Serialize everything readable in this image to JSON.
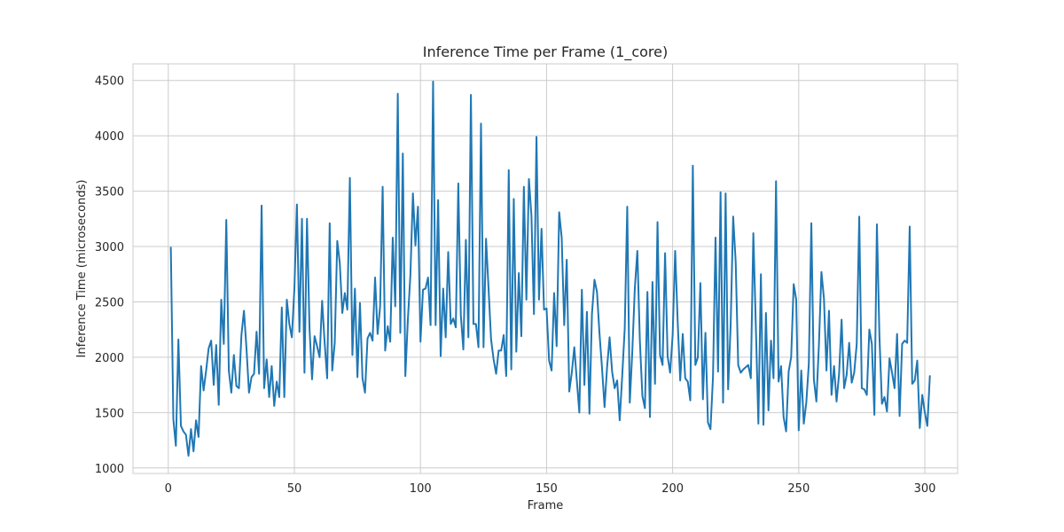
{
  "chart_data": {
    "type": "line",
    "title": "Inference Time per Frame (1_core)",
    "xlabel": "Frame",
    "ylabel": "Inference Time (microseconds)",
    "xlim": [
      -14,
      313
    ],
    "ylim": [
      950,
      4650
    ],
    "xticks": [
      0,
      50,
      100,
      150,
      200,
      250,
      300
    ],
    "yticks": [
      1000,
      1500,
      2000,
      2500,
      3000,
      3500,
      4000,
      4500
    ],
    "grid": true,
    "line_color": "#1f77b4",
    "series": [
      {
        "x_start": 1,
        "values": [
          2990,
          1440,
          1200,
          2160,
          1380,
          1330,
          1300,
          1110,
          1350,
          1150,
          1430,
          1280,
          1920,
          1700,
          1880,
          2080,
          2150,
          1750,
          2110,
          1570,
          2520,
          2120,
          3240,
          1880,
          1680,
          2020,
          1740,
          1720,
          2200,
          2420,
          2080,
          1680,
          1820,
          1850,
          2230,
          1850,
          3370,
          1720,
          1980,
          1640,
          1920,
          1560,
          1780,
          1640,
          2450,
          1640,
          2520,
          2300,
          2180,
          2620,
          3380,
          2230,
          3250,
          1860,
          3250,
          2260,
          1800,
          2190,
          2100,
          2000,
          2510,
          2130,
          1810,
          3210,
          1880,
          2130,
          3050,
          2850,
          2400,
          2580,
          2430,
          3620,
          2020,
          2620,
          1820,
          2490,
          1810,
          1680,
          2170,
          2220,
          2150,
          2720,
          2210,
          2460,
          3540,
          2060,
          2280,
          2140,
          3080,
          2460,
          4380,
          2220,
          3840,
          1830,
          2340,
          2740,
          3480,
          3010,
          3360,
          2140,
          2610,
          2620,
          2720,
          2290,
          4490,
          2290,
          3420,
          2010,
          2620,
          2180,
          2950,
          2300,
          2350,
          2270,
          3570,
          2380,
          2070,
          3060,
          2180,
          4370,
          2300,
          2300,
          2090,
          4110,
          2090,
          3070,
          2620,
          2160,
          1980,
          1850,
          2060,
          2060,
          2200,
          1830,
          3690,
          1890,
          3430,
          2050,
          2760,
          2190,
          3540,
          2520,
          3610,
          3280,
          2390,
          3990,
          2520,
          3160,
          2430,
          2440,
          1970,
          1880,
          2580,
          2100,
          3310,
          3080,
          2290,
          2880,
          1690,
          1860,
          2090,
          1790,
          1500,
          2610,
          1750,
          2410,
          1490,
          2390,
          2700,
          2590,
          2210,
          1900,
          1550,
          1910,
          2180,
          1870,
          1720,
          1790,
          1430,
          1830,
          2260,
          3360,
          1590,
          2050,
          2620,
          2960,
          2150,
          1650,
          1540,
          2590,
          1460,
          2680,
          1760,
          3220,
          2020,
          1930,
          2940,
          2010,
          1860,
          2200,
          2960,
          2320,
          1790,
          2210,
          1810,
          1780,
          1610,
          3730,
          1930,
          2000,
          2670,
          1620,
          2220,
          1410,
          1350,
          1820,
          3080,
          1870,
          3490,
          1590,
          3480,
          1710,
          2290,
          3270,
          2860,
          1930,
          1860,
          1890,
          1910,
          1930,
          1810,
          3120,
          2270,
          1400,
          2750,
          1390,
          2400,
          1520,
          2150,
          1810,
          3590,
          1780,
          1920,
          1460,
          1330,
          1870,
          2000,
          2660,
          2520,
          1340,
          1880,
          1400,
          1590,
          1940,
          3210,
          1800,
          1600,
          2110,
          2770,
          2530,
          1880,
          2420,
          1660,
          1920,
          1600,
          1850,
          2340,
          1720,
          1840,
          2130,
          1770,
          1860,
          2120,
          3270,
          1720,
          1710,
          1660,
          2250,
          2120,
          1480,
          3200,
          2190,
          1580,
          1640,
          1510,
          1990,
          1860,
          1720,
          2210,
          1470,
          2120,
          2150,
          2130,
          3180,
          1760,
          1790,
          1970,
          1360,
          1660,
          1500,
          1380,
          1830
        ]
      }
    ]
  }
}
